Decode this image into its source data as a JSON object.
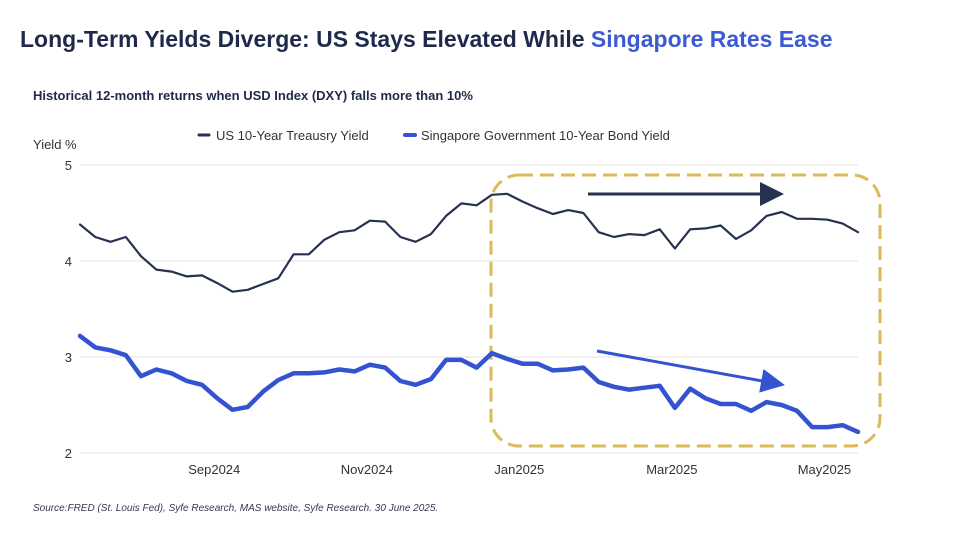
{
  "header": {
    "title_main": "Long-Term Yields Diverge: US Stays Elevated While ",
    "title_accent": "Singapore Rates Ease",
    "subtitle": "Historical 12-month returns when USD Index (DXY) falls more than 10%"
  },
  "footer": {
    "source": "Source:FRED (St. Louis Fed), Syfe Research, MAS website, Syfe Research. 30 June 2025."
  },
  "colors": {
    "us": "#26324f",
    "sg": "#3453d1",
    "accent": "#3c5bd3",
    "highlight_box": "#dcb95a",
    "grid": "#e0e0e0"
  },
  "chart_data": {
    "type": "line",
    "ylabel": "Yield %",
    "ylim": [
      2,
      5
    ],
    "yticks": [
      2,
      3,
      4,
      5
    ],
    "xtick_labels": [
      "Sep2024",
      "Nov2024",
      "Jan2025",
      "Mar2025",
      "May2025"
    ],
    "xtick_index": [
      8.8,
      18.8,
      28.8,
      38.8,
      48.8
    ],
    "grid": true,
    "legend_position": "top",
    "series": [
      {
        "name": "US 10-Year Treausry Yield",
        "color": "#26324f",
        "values": [
          4.38,
          4.25,
          4.2,
          4.25,
          4.05,
          3.91,
          3.89,
          3.84,
          3.85,
          3.77,
          3.68,
          3.7,
          3.76,
          3.82,
          4.07,
          4.07,
          4.22,
          4.3,
          4.32,
          4.42,
          4.41,
          4.25,
          4.2,
          4.28,
          4.47,
          4.6,
          4.58,
          4.69,
          4.7,
          4.62,
          4.55,
          4.49,
          4.53,
          4.5,
          4.3,
          4.25,
          4.28,
          4.27,
          4.33,
          4.13,
          4.33,
          4.34,
          4.37,
          4.23,
          4.32,
          4.47,
          4.51,
          4.44,
          4.44,
          4.43,
          4.39,
          4.3
        ]
      },
      {
        "name": "Singapore Government 10-Year Bond Yield",
        "color": "#3453d1",
        "values": [
          3.22,
          3.1,
          3.07,
          3.02,
          2.8,
          2.87,
          2.83,
          2.75,
          2.71,
          2.57,
          2.45,
          2.48,
          2.64,
          2.76,
          2.83,
          2.83,
          2.84,
          2.87,
          2.85,
          2.92,
          2.89,
          2.75,
          2.71,
          2.77,
          2.97,
          2.97,
          2.89,
          3.04,
          2.98,
          2.93,
          2.93,
          2.86,
          2.87,
          2.89,
          2.74,
          2.69,
          2.66,
          2.68,
          2.7,
          2.47,
          2.67,
          2.57,
          2.51,
          2.51,
          2.44,
          2.53,
          2.5,
          2.44,
          2.27,
          2.27,
          2.29,
          2.22
        ]
      }
    ]
  }
}
